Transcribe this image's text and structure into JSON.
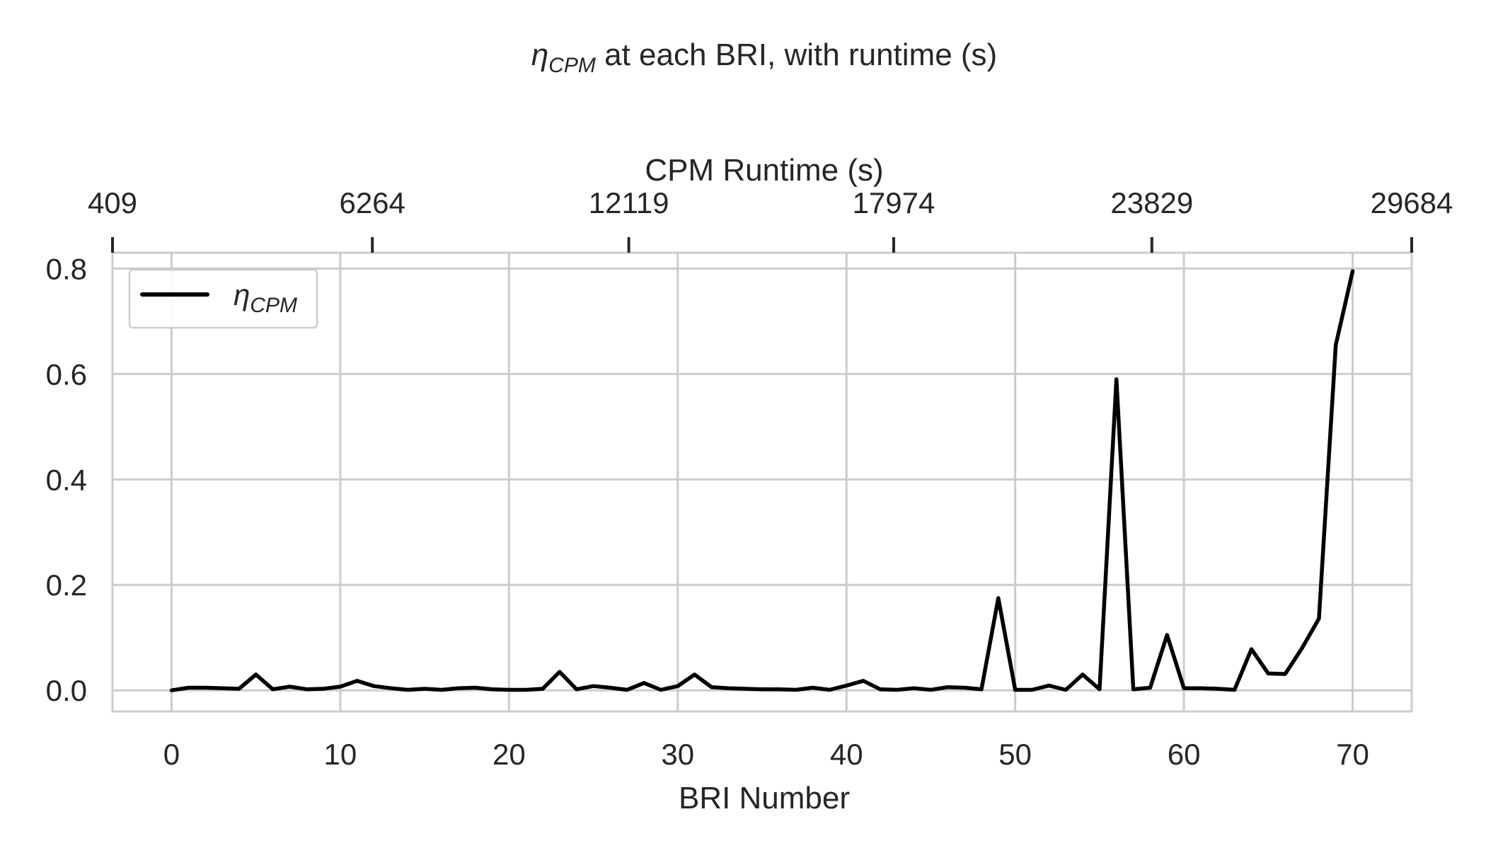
{
  "chart_data": {
    "type": "line",
    "title": {
      "symbol": "η",
      "subscript": "CPM",
      "rest": " at each BRI, with runtime (s)"
    },
    "xlabel": "BRI Number",
    "top_xlabel": "CPM Runtime (s)",
    "ylabel": "",
    "xlim": [
      -3.5,
      73.5
    ],
    "ylim": [
      -0.04,
      0.83
    ],
    "x_ticks": [
      0,
      10,
      20,
      30,
      40,
      50,
      60,
      70
    ],
    "y_ticks": [
      0.0,
      0.2,
      0.4,
      0.6,
      0.8
    ],
    "y_tick_labels": [
      "0.0",
      "0.2",
      "0.4",
      "0.6",
      "0.8"
    ],
    "top_ticks": [
      {
        "x": -3.5,
        "label": "409"
      },
      {
        "x": 11.9,
        "label": "6264"
      },
      {
        "x": 27.1,
        "label": "12119"
      },
      {
        "x": 42.8,
        "label": "17974"
      },
      {
        "x": 58.1,
        "label": "23829"
      },
      {
        "x": 73.5,
        "label": "29684"
      }
    ],
    "grid": true,
    "legend_position": "top-left",
    "series": [
      {
        "name": {
          "symbol": "η",
          "subscript": "CPM"
        },
        "color": "#000000",
        "x": [
          0,
          1,
          2,
          3,
          4,
          5,
          6,
          7,
          8,
          9,
          10,
          11,
          12,
          13,
          14,
          15,
          16,
          17,
          18,
          19,
          20,
          21,
          22,
          23,
          24,
          25,
          26,
          27,
          28,
          29,
          30,
          31,
          32,
          33,
          34,
          35,
          36,
          37,
          38,
          39,
          40,
          41,
          42,
          43,
          44,
          45,
          46,
          47,
          48,
          49,
          50,
          51,
          52,
          53,
          54,
          55,
          56,
          57,
          58,
          59,
          60,
          61,
          62,
          63,
          64,
          65,
          66,
          67,
          68,
          69,
          70
        ],
        "values": [
          0.0,
          0.005,
          0.005,
          0.004,
          0.003,
          0.03,
          0.002,
          0.007,
          0.002,
          0.003,
          0.007,
          0.018,
          0.008,
          0.004,
          0.001,
          0.003,
          0.001,
          0.004,
          0.005,
          0.002,
          0.001,
          0.001,
          0.003,
          0.035,
          0.002,
          0.008,
          0.005,
          0.001,
          0.014,
          0.001,
          0.008,
          0.03,
          0.006,
          0.004,
          0.003,
          0.002,
          0.002,
          0.001,
          0.005,
          0.001,
          0.009,
          0.018,
          0.002,
          0.001,
          0.004,
          0.001,
          0.006,
          0.005,
          0.002,
          0.175,
          0.001,
          0.001,
          0.009,
          0.001,
          0.03,
          0.002,
          0.59,
          0.002,
          0.005,
          0.105,
          0.004,
          0.004,
          0.003,
          0.001,
          0.078,
          0.032,
          0.031,
          0.08,
          0.136,
          0.655,
          0.795
        ]
      }
    ]
  }
}
